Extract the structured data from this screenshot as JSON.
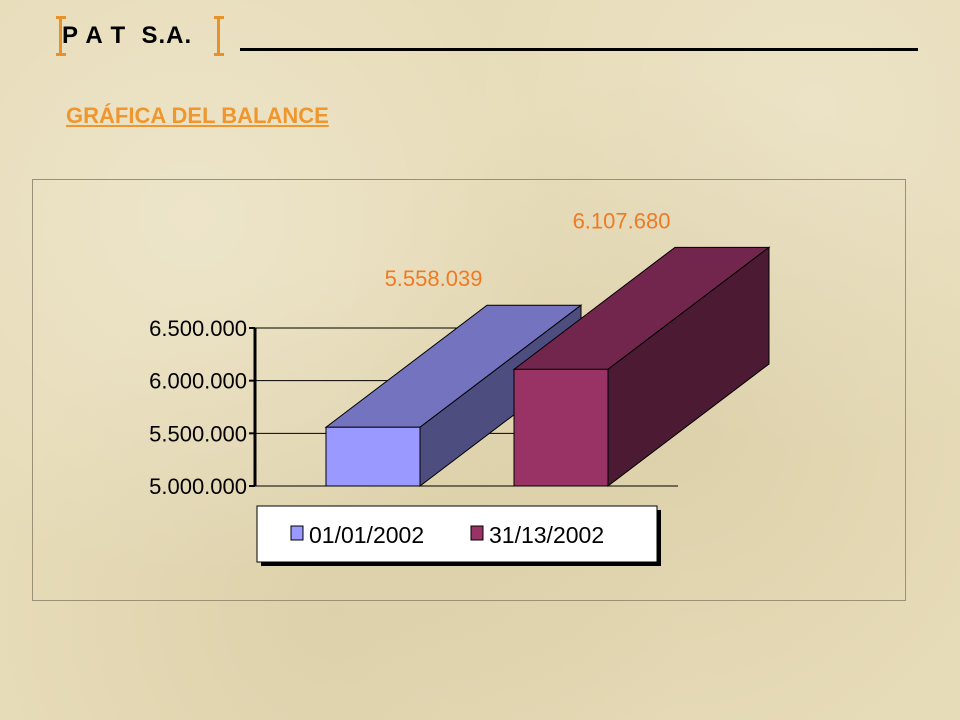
{
  "header": {
    "company": "P A T  S.A."
  },
  "subtitle": "GRÁFICA DEL BALANCE",
  "chart_data": {
    "type": "bar",
    "title": "",
    "categories": [
      "01/01/2002",
      "31/13/2002"
    ],
    "values": [
      5558039,
      6107680
    ],
    "value_labels": [
      "5.558.039",
      "6.107.680"
    ],
    "ylim": [
      5000000,
      6500000
    ],
    "yticks": [
      {
        "value": 5000000,
        "label": "5.000.000"
      },
      {
        "value": 5500000,
        "label": "5.500.000"
      },
      {
        "value": 6000000,
        "label": "6.000.000"
      },
      {
        "value": 6500000,
        "label": "6.500.000"
      }
    ],
    "grid": true,
    "legend": "bottom",
    "colors": [
      "#9999ff",
      "#993366"
    ],
    "label_color": "#f07a24"
  }
}
